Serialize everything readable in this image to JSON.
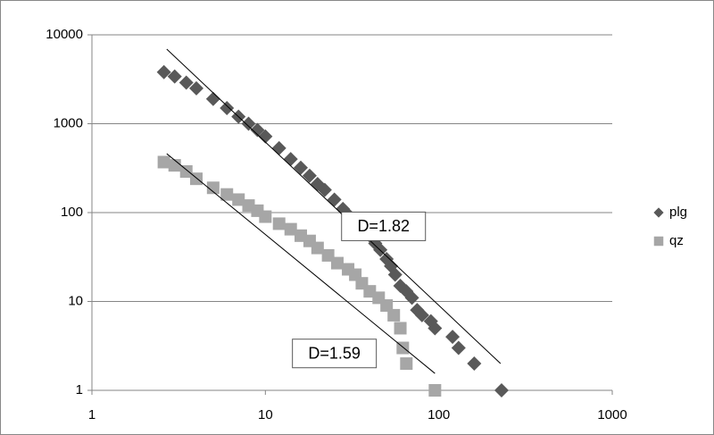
{
  "chart_data": {
    "type": "scatter",
    "xscale": "log",
    "yscale": "log",
    "xlim": [
      1,
      1000
    ],
    "xticks": [
      1,
      10,
      100,
      1000
    ],
    "ylim": [
      1,
      10000
    ],
    "yticks": [
      1,
      10,
      100,
      1000,
      10000
    ],
    "grid": true,
    "legend": "right",
    "series": [
      {
        "name": "plg",
        "color": "#595959",
        "marker": "diamond",
        "x": [
          2.6,
          3,
          3.5,
          4,
          5,
          6,
          7,
          8,
          9,
          10,
          12,
          14,
          16,
          18,
          20,
          22,
          25,
          28,
          30,
          33,
          36,
          40,
          43,
          46,
          50,
          53,
          56,
          60,
          65,
          70,
          75,
          80,
          90,
          95,
          120,
          130,
          160,
          230
        ],
        "values": [
          3800,
          3400,
          2900,
          2500,
          1900,
          1500,
          1200,
          1000,
          850,
          720,
          530,
          400,
          320,
          260,
          210,
          180,
          140,
          110,
          95,
          80,
          70,
          55,
          45,
          38,
          30,
          25,
          20,
          15,
          13,
          11,
          8,
          7,
          6,
          5,
          4,
          3,
          2,
          1
        ]
      },
      {
        "name": "qz",
        "color": "#a6a6a6",
        "marker": "square",
        "x": [
          2.6,
          3,
          3.5,
          4,
          5,
          6,
          7,
          8,
          9,
          10,
          12,
          14,
          16,
          18,
          20,
          23,
          26,
          30,
          33,
          36,
          40,
          45,
          50,
          55,
          60,
          62,
          65,
          95
        ],
        "values": [
          370,
          340,
          290,
          240,
          190,
          160,
          140,
          120,
          105,
          90,
          75,
          65,
          55,
          48,
          40,
          33,
          27,
          23,
          20,
          16,
          13,
          11,
          9,
          7,
          5,
          3,
          2,
          1
        ]
      }
    ],
    "trendlines": [
      {
        "color": "#000000",
        "x": [
          2.7,
          227
        ],
        "values": [
          6900,
          2
        ]
      },
      {
        "color": "#000000",
        "x": [
          2.7,
          95
        ],
        "values": [
          460,
          1.55
        ]
      }
    ],
    "annotations": [
      {
        "text": "D=1.82",
        "x": 48,
        "y": 70
      },
      {
        "text": "D=1.59",
        "x": 25,
        "y": 2.6
      }
    ]
  }
}
